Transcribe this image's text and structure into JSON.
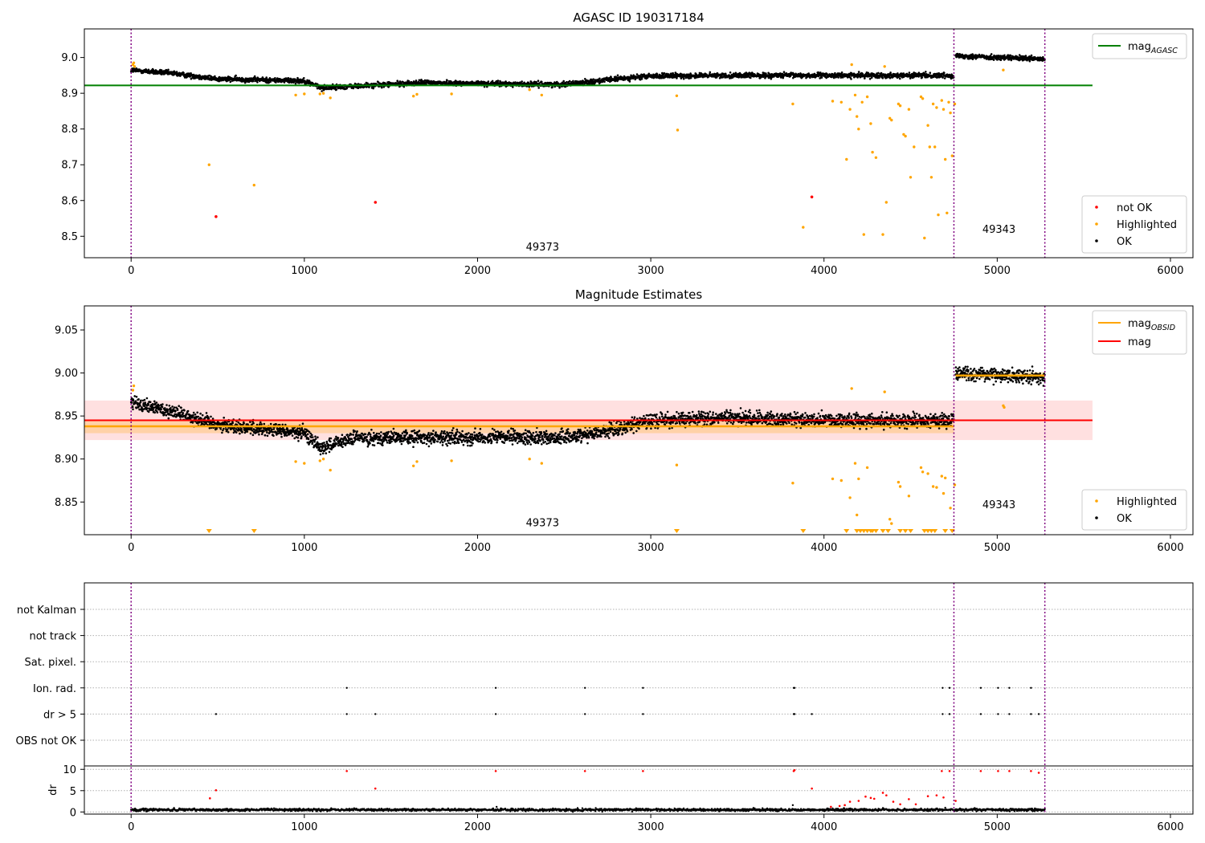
{
  "chart_data": [
    {
      "type": "scatter",
      "title": "AGASC ID 190317184",
      "xlim": [
        -270,
        6130
      ],
      "ylim": [
        8.44,
        9.08
      ],
      "x_ticks": [
        0,
        1000,
        2000,
        3000,
        4000,
        5000,
        6000
      ],
      "y_ticks": [
        8.5,
        8.6,
        8.7,
        8.8,
        8.9,
        9.0
      ],
      "y_tick_labels": [
        "8.5",
        "8.6",
        "8.7",
        "8.8",
        "8.9",
        "9.0"
      ],
      "vlines": [
        0,
        4750,
        5275
      ],
      "obsid_labels": [
        {
          "text": "49373",
          "x": 2375,
          "y": 8.46
        },
        {
          "text": "49343",
          "x": 5010,
          "y": 8.51
        }
      ],
      "hlines": [
        {
          "name": "mag_AGASC",
          "y": 8.922,
          "x_range": [
            -270,
            5550
          ],
          "color": "#008000"
        }
      ],
      "ok_series": [
        {
          "x_range": [
            0,
            4750
          ],
          "trend": [
            [
              0,
              8.965
            ],
            [
              250,
              8.955
            ],
            [
              500,
              8.94
            ],
            [
              1000,
              8.935
            ],
            [
              1100,
              8.915
            ],
            [
              1300,
              8.92
            ],
            [
              1700,
              8.93
            ],
            [
              2300,
              8.925
            ],
            [
              2500,
              8.925
            ],
            [
              2800,
              8.94
            ],
            [
              3000,
              8.948
            ],
            [
              3500,
              8.95
            ],
            [
              4000,
              8.95
            ],
            [
              4750,
              8.95
            ]
          ],
          "scatter": 0.007
        },
        {
          "x_range": [
            4760,
            5275
          ],
          "trend": [
            [
              4760,
              9.005
            ],
            [
              5275,
              8.995
            ]
          ],
          "scatter": 0.007
        }
      ],
      "highlighted": [
        [
          10,
          8.98
        ],
        [
          15,
          8.985
        ],
        [
          20,
          8.975
        ],
        [
          450,
          8.7
        ],
        [
          710,
          8.643
        ],
        [
          950,
          8.895
        ],
        [
          1000,
          8.898
        ],
        [
          1090,
          8.898
        ],
        [
          1110,
          8.9
        ],
        [
          1150,
          8.887
        ],
        [
          1630,
          8.892
        ],
        [
          1650,
          8.897
        ],
        [
          1850,
          8.898
        ],
        [
          2300,
          8.91
        ],
        [
          2370,
          8.895
        ],
        [
          3150,
          8.893
        ],
        [
          3155,
          8.797
        ],
        [
          3820,
          8.87
        ],
        [
          3880,
          8.525
        ],
        [
          4050,
          8.878
        ],
        [
          4100,
          8.875
        ],
        [
          4130,
          8.715
        ],
        [
          4150,
          8.855
        ],
        [
          4160,
          8.98
        ],
        [
          4180,
          8.895
        ],
        [
          4190,
          8.835
        ],
        [
          4200,
          8.8
        ],
        [
          4220,
          8.875
        ],
        [
          4230,
          8.505
        ],
        [
          4250,
          8.89
        ],
        [
          4270,
          8.815
        ],
        [
          4280,
          8.735
        ],
        [
          4300,
          8.72
        ],
        [
          4340,
          8.505
        ],
        [
          4350,
          8.975
        ],
        [
          4360,
          8.595
        ],
        [
          4380,
          8.83
        ],
        [
          4390,
          8.825
        ],
        [
          4430,
          8.87
        ],
        [
          4440,
          8.865
        ],
        [
          4460,
          8.785
        ],
        [
          4470,
          8.78
        ],
        [
          4490,
          8.855
        ],
        [
          4500,
          8.665
        ],
        [
          4520,
          8.75
        ],
        [
          4560,
          8.89
        ],
        [
          4570,
          8.885
        ],
        [
          4580,
          8.495
        ],
        [
          4600,
          8.81
        ],
        [
          4610,
          8.75
        ],
        [
          4620,
          8.665
        ],
        [
          4630,
          8.87
        ],
        [
          4640,
          8.75
        ],
        [
          4650,
          8.86
        ],
        [
          4660,
          8.56
        ],
        [
          4680,
          8.88
        ],
        [
          4690,
          8.855
        ],
        [
          4700,
          8.715
        ],
        [
          4710,
          8.565
        ],
        [
          4720,
          8.875
        ],
        [
          4730,
          8.845
        ],
        [
          4740,
          8.725
        ],
        [
          4755,
          8.87
        ],
        [
          5035,
          8.965
        ]
      ],
      "not_ok": [
        [
          490,
          8.555
        ],
        [
          1410,
          8.595
        ],
        [
          3930,
          8.61
        ]
      ],
      "legend_lines": [
        {
          "label": "mag",
          "sub": "AGASC",
          "color": "#008000"
        }
      ],
      "legend_points": [
        {
          "label": "not OK",
          "color": "#ff0000"
        },
        {
          "label": "Highlighted",
          "color": "#ffa500"
        },
        {
          "label": "OK",
          "color": "#000000"
        }
      ],
      "legend_lines_position": "top-right",
      "legend_points_position": "bottom-right",
      "grid": false
    },
    {
      "type": "scatter",
      "title": "Magnitude Estimates",
      "xlim": [
        -270,
        6130
      ],
      "ylim": [
        8.812,
        9.078
      ],
      "x_ticks": [
        0,
        1000,
        2000,
        3000,
        4000,
        5000,
        6000
      ],
      "y_ticks": [
        8.85,
        8.9,
        8.95,
        9.0,
        9.05
      ],
      "y_tick_labels": [
        "8.85",
        "8.90",
        "8.95",
        "9.00",
        "9.05"
      ],
      "vlines": [
        0,
        4750,
        5275
      ],
      "obsid_labels": [
        {
          "text": "49373",
          "x": 2375,
          "y": 8.822
        },
        {
          "text": "49343",
          "x": 5010,
          "y": 8.843
        }
      ],
      "mag": {
        "value": 8.945,
        "band": [
          8.922,
          8.968
        ],
        "x_range": [
          -270,
          5550
        ],
        "color": "#ff0000"
      },
      "mag_obsid": [
        {
          "value": 8.938,
          "band": [
            8.93,
            8.946
          ],
          "x_range": [
            -270,
            4750
          ]
        },
        {
          "value": 8.997,
          "band": [
            8.993,
            9.001
          ],
          "x_range": [
            4760,
            5275
          ]
        }
      ],
      "ok_series": [
        {
          "x_range": [
            0,
            4750
          ],
          "trend": [
            [
              0,
              8.965
            ],
            [
              250,
              8.955
            ],
            [
              500,
              8.94
            ],
            [
              1000,
              8.93
            ],
            [
              1100,
              8.913
            ],
            [
              1300,
              8.925
            ],
            [
              1700,
              8.925
            ],
            [
              2300,
              8.925
            ],
            [
              2500,
              8.925
            ],
            [
              2800,
              8.935
            ],
            [
              3000,
              8.945
            ],
            [
              3500,
              8.948
            ],
            [
              4000,
              8.945
            ],
            [
              4750,
              8.945
            ]
          ],
          "scatter": 0.008
        },
        {
          "x_range": [
            4760,
            5275
          ],
          "trend": [
            [
              4760,
              9.0
            ],
            [
              5275,
              8.995
            ]
          ],
          "scatter": 0.008
        }
      ],
      "highlighted": [
        [
          10,
          8.98
        ],
        [
          15,
          8.985
        ],
        [
          950,
          8.897
        ],
        [
          1000,
          8.895
        ],
        [
          1090,
          8.898
        ],
        [
          1110,
          8.9
        ],
        [
          1150,
          8.887
        ],
        [
          1630,
          8.892
        ],
        [
          1650,
          8.897
        ],
        [
          1850,
          8.898
        ],
        [
          2300,
          8.9
        ],
        [
          2370,
          8.895
        ],
        [
          3150,
          8.893
        ],
        [
          3820,
          8.872
        ],
        [
          4050,
          8.877
        ],
        [
          4100,
          8.875
        ],
        [
          4150,
          8.855
        ],
        [
          4160,
          8.982
        ],
        [
          4180,
          8.895
        ],
        [
          4190,
          8.835
        ],
        [
          4200,
          8.877
        ],
        [
          4250,
          8.89
        ],
        [
          4350,
          8.978
        ],
        [
          4380,
          8.83
        ],
        [
          4390,
          8.825
        ],
        [
          4430,
          8.873
        ],
        [
          4440,
          8.868
        ],
        [
          4490,
          8.857
        ],
        [
          4560,
          8.89
        ],
        [
          4570,
          8.885
        ],
        [
          4600,
          8.883
        ],
        [
          4630,
          8.868
        ],
        [
          4650,
          8.867
        ],
        [
          4680,
          8.88
        ],
        [
          4690,
          8.86
        ],
        [
          4700,
          8.878
        ],
        [
          4730,
          8.843
        ],
        [
          4755,
          8.87
        ],
        [
          5035,
          8.962
        ],
        [
          5040,
          8.96
        ]
      ],
      "floor_markers": [
        450,
        710,
        3150,
        3880,
        4130,
        4190,
        4210,
        4230,
        4250,
        4270,
        4280,
        4300,
        4340,
        4370,
        4440,
        4470,
        4500,
        4580,
        4600,
        4620,
        4640,
        4700,
        4740
      ],
      "legend_lines": [
        {
          "label": "mag",
          "sub": "OBSID",
          "color": "#ffa500"
        },
        {
          "label": "mag",
          "sub": "",
          "color": "#ff0000"
        }
      ],
      "legend_points": [
        {
          "label": "Highlighted",
          "color": "#ffa500"
        },
        {
          "label": "OK",
          "color": "#000000"
        }
      ],
      "legend_lines_position": "top-right",
      "legend_points_position": "bottom-right",
      "grid": false
    },
    {
      "type": "scatter",
      "title": "",
      "xlim": [
        -270,
        6130
      ],
      "x_ticks": [
        0,
        1000,
        2000,
        3000,
        4000,
        5000,
        6000
      ],
      "vlines": [
        0,
        4750,
        5275
      ],
      "flag_rows": [
        "not Kalman",
        "not track",
        "Sat. pixel.",
        "Ion. rad.",
        "dr > 5",
        "OBS not OK"
      ],
      "flag_points": {
        "Ion. rad.": [
          1245,
          2105,
          2620,
          2955,
          3825,
          3830,
          4685,
          4725,
          4905,
          5005,
          5070,
          5195
        ],
        "dr > 5": [
          490,
          1245,
          1410,
          2105,
          2620,
          2955,
          3825,
          3830,
          3930,
          4685,
          4725,
          4905,
          5005,
          5070,
          5195,
          5240
        ]
      },
      "dr_panel": {
        "ylabel": "dr",
        "ylim": [
          -0.5,
          10.8
        ],
        "y_ticks": [
          0,
          5,
          10
        ],
        "y_tick_labels": [
          "0",
          "5",
          "10"
        ],
        "ok_level": 0.5,
        "ok_scatter": 0.5,
        "not_ok": [
          [
            455,
            3.2
          ],
          [
            490,
            5.1
          ],
          [
            1245,
            9.6
          ],
          [
            1410,
            5.5
          ],
          [
            2105,
            9.6
          ],
          [
            2620,
            9.6
          ],
          [
            2955,
            9.6
          ],
          [
            3825,
            9.6
          ],
          [
            3830,
            9.8
          ],
          [
            3930,
            5.5
          ],
          [
            4040,
            1.2
          ],
          [
            4090,
            1.4
          ],
          [
            4120,
            1.6
          ],
          [
            4150,
            2.4
          ],
          [
            4200,
            2.6
          ],
          [
            4240,
            3.6
          ],
          [
            4270,
            3.3
          ],
          [
            4290,
            3.1
          ],
          [
            4340,
            4.5
          ],
          [
            4360,
            3.9
          ],
          [
            4400,
            2.4
          ],
          [
            4440,
            1.8
          ],
          [
            4490,
            3.0
          ],
          [
            4530,
            1.8
          ],
          [
            4600,
            3.7
          ],
          [
            4650,
            3.9
          ],
          [
            4680,
            9.6
          ],
          [
            4690,
            3.4
          ],
          [
            4725,
            9.6
          ],
          [
            4760,
            2.6
          ],
          [
            4905,
            9.6
          ],
          [
            5005,
            9.6
          ],
          [
            5070,
            9.6
          ],
          [
            5195,
            9.6
          ],
          [
            5240,
            9.2
          ]
        ],
        "highlighted": [
          [
            2110,
            1.2
          ],
          [
            3820,
            1.6
          ],
          [
            4700,
            1.0
          ]
        ]
      }
    }
  ]
}
